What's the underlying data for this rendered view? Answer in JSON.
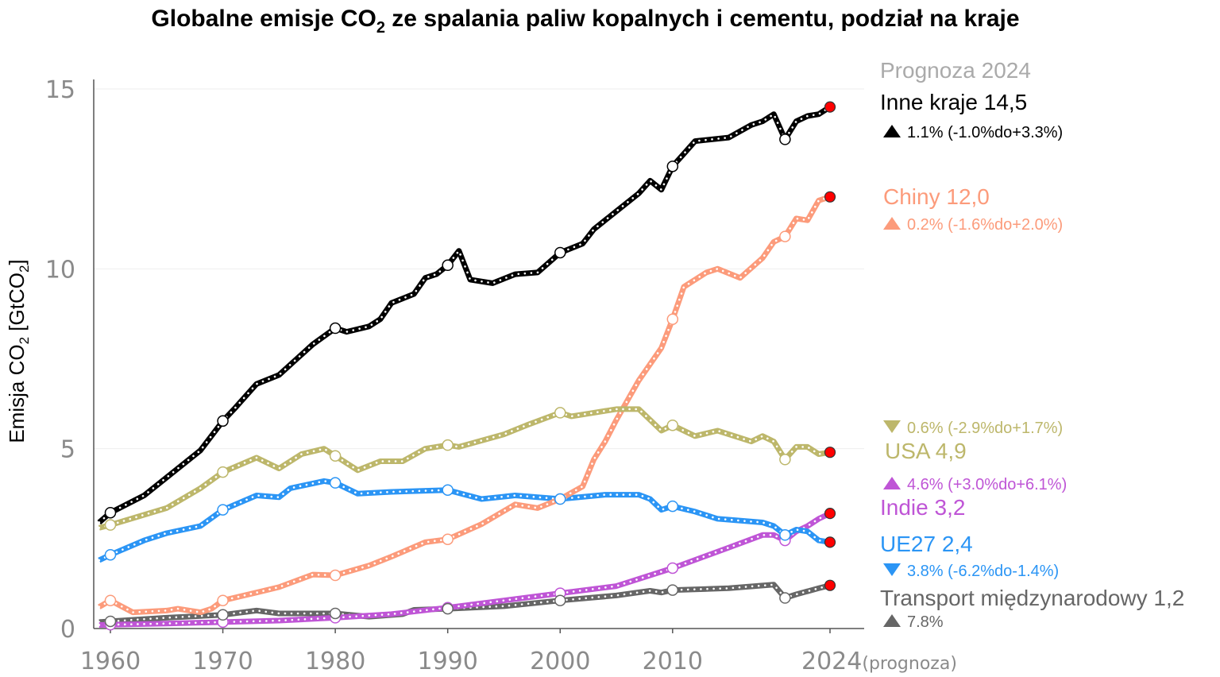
{
  "chart_data": {
    "type": "line",
    "title_pre": "Globalne emisje CO",
    "title_sub": "2",
    "title_post": " ze spalania paliw kopalnych i cementu, podział na kraje",
    "ylabel_pre": "Emisja CO",
    "ylabel_sub1": "2",
    "ylabel_mid": " [GtCO",
    "ylabel_sub2": "2",
    "ylabel_post": "]",
    "xlim": [
      1959,
      2024
    ],
    "ylim": [
      0,
      15
    ],
    "yticks": [
      "0",
      "5",
      "10",
      "15"
    ],
    "ytick_values": [
      0,
      5,
      10,
      15
    ],
    "xticks": [
      "1960",
      "1970",
      "1980",
      "1990",
      "2000",
      "2010",
      "2024"
    ],
    "xtick_values": [
      1960,
      1970,
      1980,
      1990,
      2000,
      2010,
      2024
    ],
    "xtick_suffix": "(prognoza)",
    "grid": true,
    "legend_header": "Prognoza 2024",
    "legend_placement": "right",
    "marker_years_open": [
      1960,
      1970,
      1980,
      1990,
      2000,
      2010,
      2020
    ],
    "marker_year_projection": 2024,
    "projection_marker_color": "#ff0000",
    "series": [
      {
        "name": "Inne kraje",
        "label": "Inne kraje 14,5",
        "change": "1.1% (-1.0%do+3.3%)",
        "direction": "up",
        "color": "#000000",
        "points": [
          [
            1959,
            2.95
          ],
          [
            1960,
            3.22
          ],
          [
            1963,
            3.7
          ],
          [
            1965,
            4.2
          ],
          [
            1968,
            4.95
          ],
          [
            1970,
            5.77
          ],
          [
            1971,
            6.1
          ],
          [
            1973,
            6.8
          ],
          [
            1975,
            7.05
          ],
          [
            1978,
            7.9
          ],
          [
            1980,
            8.35
          ],
          [
            1981,
            8.25
          ],
          [
            1983,
            8.4
          ],
          [
            1984,
            8.6
          ],
          [
            1985,
            9.05
          ],
          [
            1987,
            9.3
          ],
          [
            1988,
            9.75
          ],
          [
            1989,
            9.85
          ],
          [
            1990,
            10.1
          ],
          [
            1991,
            10.5
          ],
          [
            1992,
            9.7
          ],
          [
            1994,
            9.6
          ],
          [
            1996,
            9.85
          ],
          [
            1998,
            9.9
          ],
          [
            2000,
            10.45
          ],
          [
            2002,
            10.7
          ],
          [
            2003,
            11.1
          ],
          [
            2005,
            11.6
          ],
          [
            2007,
            12.1
          ],
          [
            2008,
            12.45
          ],
          [
            2009,
            12.2
          ],
          [
            2010,
            12.85
          ],
          [
            2011,
            13.2
          ],
          [
            2012,
            13.55
          ],
          [
            2015,
            13.65
          ],
          [
            2017,
            14.0
          ],
          [
            2018,
            14.1
          ],
          [
            2019,
            14.3
          ],
          [
            2020,
            13.6
          ],
          [
            2021,
            14.1
          ],
          [
            2022,
            14.25
          ],
          [
            2023,
            14.3
          ],
          [
            2024,
            14.5
          ]
        ]
      },
      {
        "name": "Chiny",
        "label": "Chiny 12,0",
        "change": "0.2% (-1.6%do+2.0%)",
        "direction": "up",
        "color": "#fc9b7b",
        "points": [
          [
            1959,
            0.6
          ],
          [
            1960,
            0.78
          ],
          [
            1962,
            0.45
          ],
          [
            1965,
            0.5
          ],
          [
            1966,
            0.55
          ],
          [
            1968,
            0.45
          ],
          [
            1969,
            0.55
          ],
          [
            1970,
            0.78
          ],
          [
            1973,
            1.0
          ],
          [
            1975,
            1.15
          ],
          [
            1978,
            1.5
          ],
          [
            1980,
            1.48
          ],
          [
            1983,
            1.75
          ],
          [
            1985,
            2.0
          ],
          [
            1988,
            2.4
          ],
          [
            1990,
            2.48
          ],
          [
            1993,
            2.9
          ],
          [
            1996,
            3.45
          ],
          [
            1998,
            3.35
          ],
          [
            2000,
            3.6
          ],
          [
            2002,
            3.95
          ],
          [
            2003,
            4.7
          ],
          [
            2004,
            5.2
          ],
          [
            2005,
            5.8
          ],
          [
            2007,
            6.9
          ],
          [
            2009,
            7.8
          ],
          [
            2010,
            8.6
          ],
          [
            2011,
            9.5
          ],
          [
            2013,
            9.9
          ],
          [
            2014,
            10.0
          ],
          [
            2016,
            9.75
          ],
          [
            2018,
            10.3
          ],
          [
            2019,
            10.75
          ],
          [
            2020,
            10.9
          ],
          [
            2021,
            11.4
          ],
          [
            2022,
            11.35
          ],
          [
            2023,
            11.9
          ],
          [
            2024,
            12.0
          ]
        ]
      },
      {
        "name": "USA",
        "label": "USA 4,9",
        "change": "0.6% (-2.9%do+1.7%)",
        "direction": "down",
        "color": "#bdb76b",
        "points": [
          [
            1959,
            2.8
          ],
          [
            1960,
            2.88
          ],
          [
            1965,
            3.35
          ],
          [
            1968,
            3.9
          ],
          [
            1970,
            4.35
          ],
          [
            1973,
            4.75
          ],
          [
            1975,
            4.45
          ],
          [
            1977,
            4.85
          ],
          [
            1979,
            5.0
          ],
          [
            1980,
            4.8
          ],
          [
            1982,
            4.4
          ],
          [
            1984,
            4.65
          ],
          [
            1986,
            4.65
          ],
          [
            1988,
            5.0
          ],
          [
            1990,
            5.1
          ],
          [
            1991,
            5.05
          ],
          [
            1995,
            5.4
          ],
          [
            1997,
            5.65
          ],
          [
            2000,
            6.0
          ],
          [
            2001,
            5.9
          ],
          [
            2003,
            6.0
          ],
          [
            2005,
            6.1
          ],
          [
            2007,
            6.1
          ],
          [
            2009,
            5.5
          ],
          [
            2010,
            5.65
          ],
          [
            2012,
            5.35
          ],
          [
            2014,
            5.5
          ],
          [
            2017,
            5.2
          ],
          [
            2018,
            5.35
          ],
          [
            2019,
            5.2
          ],
          [
            2020,
            4.7
          ],
          [
            2021,
            5.05
          ],
          [
            2022,
            5.05
          ],
          [
            2023,
            4.85
          ],
          [
            2024,
            4.9
          ]
        ]
      },
      {
        "name": "Indie",
        "label": "Indie 3,2",
        "change": "4.6% (+3.0%do+6.1%)",
        "direction": "up",
        "color": "#bf55d6",
        "points": [
          [
            1959,
            0.1
          ],
          [
            1965,
            0.14
          ],
          [
            1970,
            0.18
          ],
          [
            1975,
            0.22
          ],
          [
            1980,
            0.3
          ],
          [
            1985,
            0.4
          ],
          [
            1990,
            0.58
          ],
          [
            1995,
            0.78
          ],
          [
            2000,
            0.98
          ],
          [
            2005,
            1.18
          ],
          [
            2010,
            1.68
          ],
          [
            2015,
            2.25
          ],
          [
            2018,
            2.6
          ],
          [
            2019,
            2.6
          ],
          [
            2020,
            2.45
          ],
          [
            2021,
            2.7
          ],
          [
            2022,
            2.85
          ],
          [
            2023,
            3.05
          ],
          [
            2024,
            3.2
          ]
        ]
      },
      {
        "name": "UE27",
        "label": "UE27 2,4",
        "change": "3.8% (-6.2%do-1.4%)",
        "direction": "down",
        "color": "#2b95f5",
        "points": [
          [
            1959,
            1.9
          ],
          [
            1960,
            2.05
          ],
          [
            1963,
            2.45
          ],
          [
            1965,
            2.65
          ],
          [
            1968,
            2.85
          ],
          [
            1970,
            3.3
          ],
          [
            1973,
            3.7
          ],
          [
            1975,
            3.65
          ],
          [
            1976,
            3.9
          ],
          [
            1979,
            4.1
          ],
          [
            1980,
            4.05
          ],
          [
            1982,
            3.75
          ],
          [
            1985,
            3.8
          ],
          [
            1990,
            3.85
          ],
          [
            1993,
            3.6
          ],
          [
            1996,
            3.7
          ],
          [
            2000,
            3.6
          ],
          [
            2004,
            3.72
          ],
          [
            2007,
            3.72
          ],
          [
            2008,
            3.6
          ],
          [
            2009,
            3.3
          ],
          [
            2010,
            3.4
          ],
          [
            2012,
            3.25
          ],
          [
            2014,
            3.05
          ],
          [
            2018,
            2.95
          ],
          [
            2019,
            2.85
          ],
          [
            2020,
            2.6
          ],
          [
            2021,
            2.75
          ],
          [
            2022,
            2.7
          ],
          [
            2023,
            2.45
          ],
          [
            2024,
            2.4
          ]
        ]
      },
      {
        "name": "Transport międzynarodowy",
        "label": "Transport międzynarodowy 1,2",
        "change": "7.8%",
        "direction": "up",
        "color": "#666666",
        "points": [
          [
            1959,
            0.18
          ],
          [
            1960,
            0.2
          ],
          [
            1965,
            0.3
          ],
          [
            1970,
            0.38
          ],
          [
            1973,
            0.5
          ],
          [
            1975,
            0.42
          ],
          [
            1980,
            0.42
          ],
          [
            1983,
            0.33
          ],
          [
            1986,
            0.4
          ],
          [
            1987,
            0.52
          ],
          [
            1990,
            0.55
          ],
          [
            1995,
            0.62
          ],
          [
            2000,
            0.78
          ],
          [
            2005,
            0.92
          ],
          [
            2008,
            1.05
          ],
          [
            2009,
            1.0
          ],
          [
            2010,
            1.07
          ],
          [
            2015,
            1.12
          ],
          [
            2019,
            1.22
          ],
          [
            2020,
            0.85
          ],
          [
            2021,
            0.95
          ],
          [
            2023,
            1.12
          ],
          [
            2024,
            1.2
          ]
        ]
      }
    ]
  }
}
